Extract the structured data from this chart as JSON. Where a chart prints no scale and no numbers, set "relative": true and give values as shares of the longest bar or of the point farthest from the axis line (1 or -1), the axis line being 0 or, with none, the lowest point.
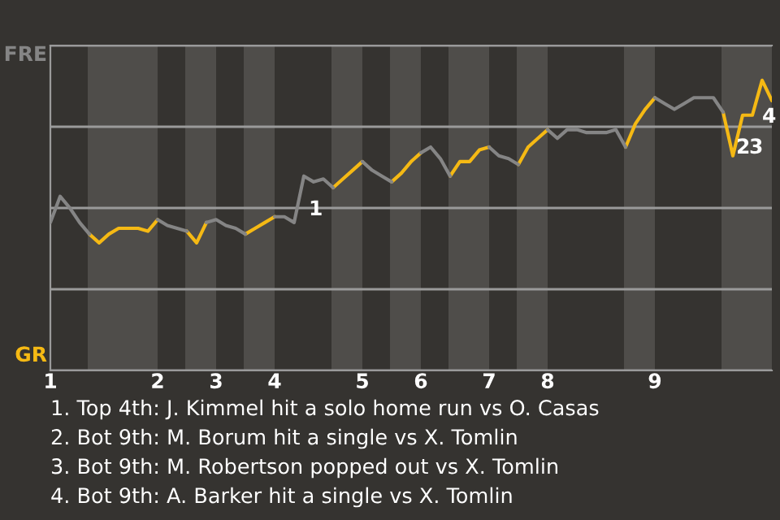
{
  "chart_data": {
    "type": "line",
    "relative": true,
    "grid": "y",
    "marker": "none",
    "line_style": "solid",
    "categories": [
      "1",
      null,
      null,
      null,
      null,
      null,
      null,
      null,
      null,
      null,
      null,
      "2",
      null,
      null,
      null,
      null,
      null,
      "3",
      null,
      null,
      null,
      null,
      null,
      "4",
      null,
      null,
      null,
      null,
      null,
      null,
      null,
      null,
      "5",
      null,
      null,
      null,
      null,
      null,
      "6",
      null,
      null,
      null,
      null,
      null,
      null,
      "7",
      null,
      null,
      null,
      null,
      null,
      "8",
      null,
      null,
      null,
      null,
      null,
      null,
      null,
      null,
      null,
      null,
      "9",
      null,
      null,
      null,
      null,
      null,
      null,
      null,
      null,
      null,
      null,
      null,
      null
    ],
    "series": [
      {
        "color": "#f5b914",
        "values": [
          null,
          null,
          null,
          null,
          0.47,
          0.44,
          0.47,
          0.49,
          0.49,
          0.49,
          0.48,
          0.52,
          null,
          null,
          0.48,
          0.44,
          0.51,
          null,
          null,
          null,
          0.47,
          0.49,
          0.51,
          0.53,
          null,
          null,
          null,
          null,
          null,
          0.63,
          0.66,
          0.69,
          0.72,
          null,
          null,
          0.65,
          0.68,
          0.72,
          0.75,
          null,
          null,
          0.67,
          0.72,
          0.72,
          0.76,
          0.77,
          null,
          null,
          0.71,
          0.77,
          0.8,
          0.83,
          null,
          null,
          null,
          null,
          null,
          null,
          null,
          0.77,
          0.85,
          0.9,
          0.94,
          null,
          null,
          null,
          null,
          null,
          null,
          0.89,
          0.74,
          0.88,
          0.88,
          1,
          0.93
        ]
      },
      {
        "color": "#858585",
        "values": [
          0.51,
          0.6,
          0.56,
          0.51,
          0.47,
          null,
          null,
          null,
          null,
          null,
          null,
          0.52,
          0.5,
          0.49,
          0.48,
          null,
          0.51,
          0.52,
          0.5,
          0.49,
          0.47,
          null,
          null,
          0.53,
          0.53,
          0.51,
          0.67,
          0.65,
          0.66,
          0.63,
          null,
          null,
          0.72,
          0.69,
          0.67,
          0.65,
          null,
          null,
          0.75,
          0.77,
          0.73,
          0.67,
          null,
          null,
          null,
          0.77,
          0.74,
          0.73,
          0.71,
          null,
          null,
          0.83,
          0.8,
          0.83,
          0.83,
          0.82,
          0.82,
          0.82,
          0.83,
          0.77,
          null,
          null,
          0.94,
          0.92,
          0.9,
          0.92,
          0.94,
          0.94,
          0.94,
          0.89,
          null,
          null,
          null,
          null,
          null
        ]
      }
    ],
    "annotations": [
      "FRE",
      "GR",
      "1",
      "2",
      "3",
      "4",
      "1. Top 4th: J. Kimmel hit a solo home run vs O. Casas",
      "2. Bot 9th: M. Borum hit a single vs X. Tomlin",
      "3. Bot 9th: M. Robertson popped out vs X. Tomlin",
      "4. Bot 9th: A. Barker hit a single vs X. Tomlin"
    ]
  }
}
